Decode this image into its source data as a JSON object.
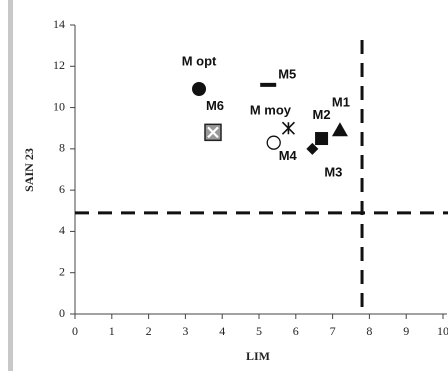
{
  "chart_data": {
    "type": "scatter",
    "x_label": "LIM",
    "y_label": "SAIN 23",
    "xlim": [
      0,
      10
    ],
    "xticks": [
      0,
      1,
      2,
      3,
      4,
      5,
      6,
      7,
      8,
      9,
      10
    ],
    "ylim": [
      0,
      14
    ],
    "yticks": [
      0,
      2,
      4,
      6,
      8,
      10,
      12,
      14
    ],
    "grid": false,
    "hlines": [
      4.9
    ],
    "vlines": [
      7.8
    ],
    "series": [
      {
        "name": "M opt",
        "marker": "circle-filled",
        "color": "#111",
        "x": [
          3.37
        ],
        "values": [
          10.9
        ]
      },
      {
        "name": "M6",
        "marker": "box-x",
        "color": "#222",
        "x": [
          3.75
        ],
        "values": [
          8.8
        ]
      },
      {
        "name": "M5",
        "marker": "dash",
        "color": "#111",
        "x": [
          5.25
        ],
        "values": [
          11.1
        ]
      },
      {
        "name": "M moy",
        "marker": "x",
        "color": "#111",
        "x": [
          5.8
        ],
        "values": [
          9.0
        ]
      },
      {
        "name": "M4",
        "marker": "circle-open",
        "color": "#111",
        "x": [
          5.4
        ],
        "values": [
          8.3
        ]
      },
      {
        "name": "M2",
        "marker": "square",
        "color": "#111",
        "x": [
          6.7
        ],
        "values": [
          8.5
        ]
      },
      {
        "name": "M1",
        "marker": "triangle",
        "color": "#111",
        "x": [
          7.2
        ],
        "values": [
          8.9
        ]
      },
      {
        "name": "M3",
        "marker": "diamond",
        "color": "#111",
        "x": [
          6.45
        ],
        "values": [
          8.0
        ]
      }
    ]
  }
}
